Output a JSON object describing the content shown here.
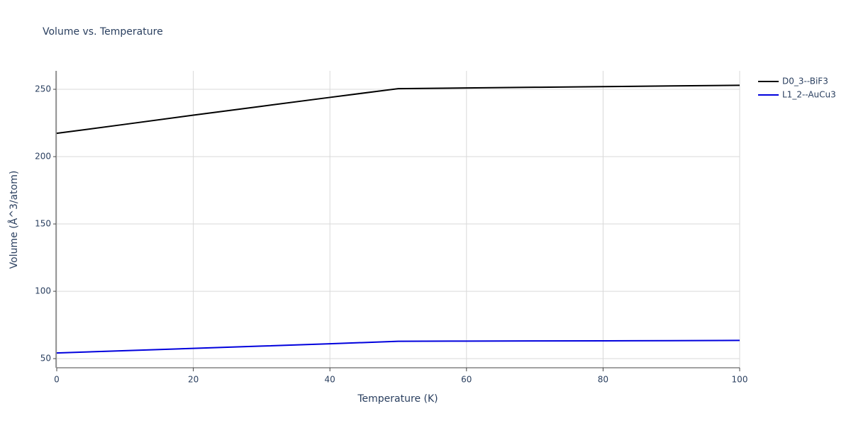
{
  "chart_data": {
    "type": "line",
    "title": "Volume vs. Temperature",
    "x_label": "Temperature (K)",
    "y_label": "Volume (Å^3/atom)",
    "x": [
      0,
      10,
      20,
      30,
      40,
      50,
      60,
      70,
      80,
      90,
      100
    ],
    "series": [
      {
        "name": "D0_3--BiF3",
        "color": "#000000",
        "values": [
          217.3,
          224.0,
          230.8,
          237.4,
          244.0,
          250.5,
          251.0,
          251.5,
          252.0,
          252.5,
          253.0
        ]
      },
      {
        "name": "L1_2--AuCu3",
        "color": "#0000dd",
        "values": [
          54.2,
          55.9,
          57.6,
          59.3,
          61.0,
          62.9,
          63.0,
          63.1,
          63.2,
          63.35,
          63.5
        ]
      }
    ],
    "xlim": [
      0,
      100
    ],
    "xticks": [
      0,
      20,
      40,
      60,
      80,
      100
    ],
    "ylim": [
      43.2,
      263.7
    ],
    "yticks": [
      50,
      100,
      150,
      200,
      250
    ],
    "grid": true,
    "legend": "top-right"
  }
}
